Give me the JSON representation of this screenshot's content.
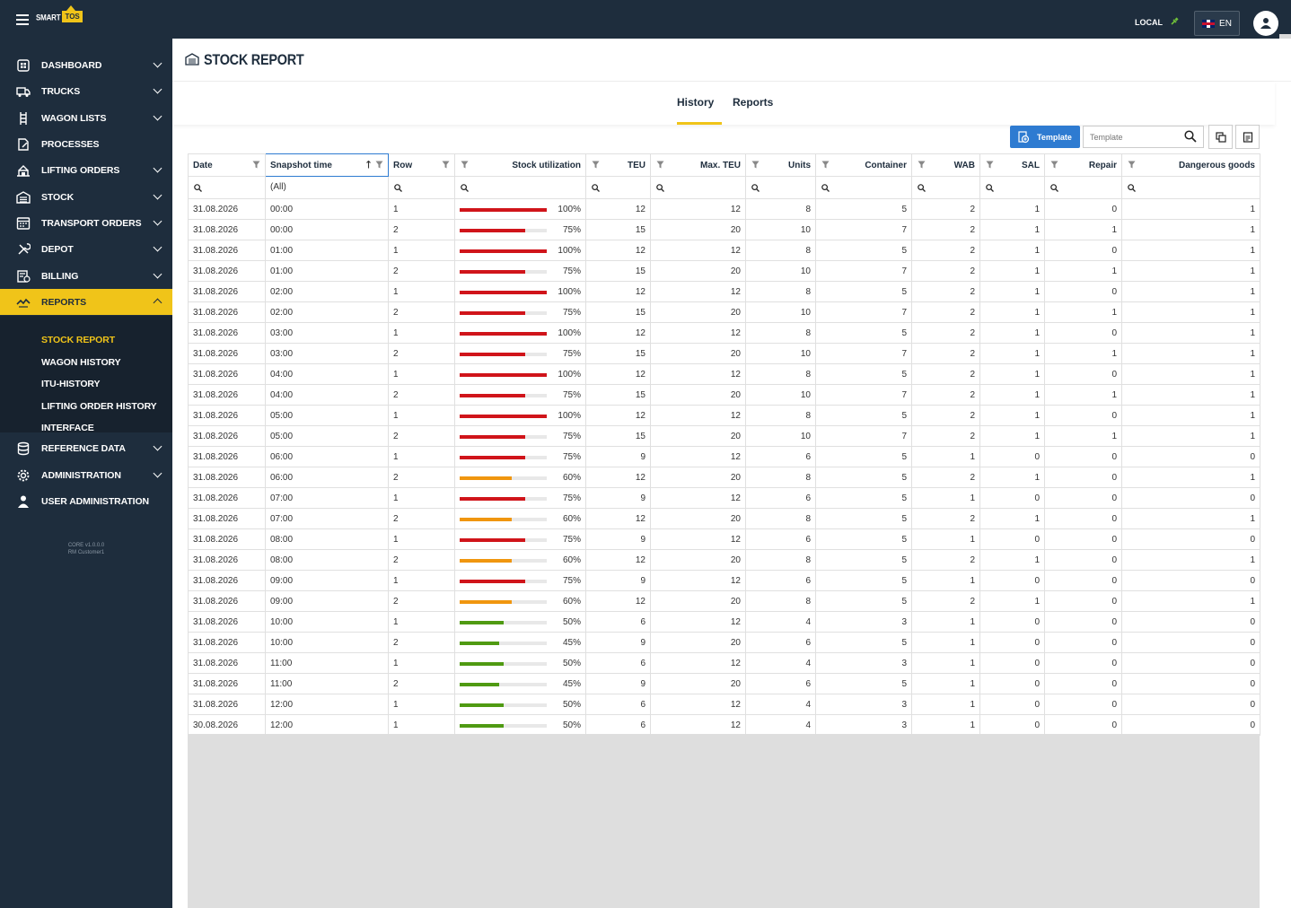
{
  "topbar": {
    "local_label": "LOCAL",
    "lang": "EN",
    "logo_smart": "SMART",
    "logo_tos": "TOS"
  },
  "sidebar": {
    "items": [
      {
        "label": "DASHBOARD",
        "icon": "dashboard-icon"
      },
      {
        "label": "TRUCKS",
        "icon": "truck-icon"
      },
      {
        "label": "WAGON LISTS",
        "icon": "wagon-icon"
      },
      {
        "label": "PROCESSES",
        "icon": "processes-icon"
      },
      {
        "label": "LIFTING ORDERS",
        "icon": "lifting-icon"
      },
      {
        "label": "STOCK",
        "icon": "stock-icon"
      },
      {
        "label": "TRANSPORT ORDERS",
        "icon": "transport-icon"
      },
      {
        "label": "DEPOT",
        "icon": "tools-icon"
      },
      {
        "label": "BILLING",
        "icon": "billing-icon"
      },
      {
        "label": "REPORTS",
        "icon": "reports-icon"
      },
      {
        "label": "REFERENCE DATA",
        "icon": "database-icon"
      },
      {
        "label": "ADMINISTRATION",
        "icon": "gear-icon"
      },
      {
        "label": "USER ADMINISTRATION",
        "icon": "user-icon"
      }
    ],
    "reports_sub": [
      "STOCK REPORT",
      "WAGON HISTORY",
      "ITU-HISTORY",
      "LIFTING ORDER HISTORY",
      "INTERFACE"
    ],
    "version_line1": "CORE v1.0.0.0",
    "version_line2": "RM Customer1"
  },
  "page": {
    "title": "STOCK REPORT"
  },
  "tabs": [
    "History",
    "Reports"
  ],
  "toolbar": {
    "template_button": "Template",
    "template_placeholder": "Template"
  },
  "grid": {
    "columns": [
      "Date",
      "Snapshot time",
      "Row",
      "Stock utilization",
      "TEU",
      "Max. TEU",
      "Units",
      "Container",
      "WAB",
      "SAL",
      "Repair",
      "Dangerous goods"
    ],
    "filter_all": "(All)",
    "rows": [
      [
        "31.08.2026",
        "00:00",
        "1",
        "100%",
        "12",
        "12",
        "8",
        "5",
        "2",
        "1",
        "0",
        "1"
      ],
      [
        "31.08.2026",
        "00:00",
        "2",
        "75%",
        "15",
        "20",
        "10",
        "7",
        "2",
        "1",
        "1",
        "1"
      ],
      [
        "31.08.2026",
        "01:00",
        "1",
        "100%",
        "12",
        "12",
        "8",
        "5",
        "2",
        "1",
        "0",
        "1"
      ],
      [
        "31.08.2026",
        "01:00",
        "2",
        "75%",
        "15",
        "20",
        "10",
        "7",
        "2",
        "1",
        "1",
        "1"
      ],
      [
        "31.08.2026",
        "02:00",
        "1",
        "100%",
        "12",
        "12",
        "8",
        "5",
        "2",
        "1",
        "0",
        "1"
      ],
      [
        "31.08.2026",
        "02:00",
        "2",
        "75%",
        "15",
        "20",
        "10",
        "7",
        "2",
        "1",
        "1",
        "1"
      ],
      [
        "31.08.2026",
        "03:00",
        "1",
        "100%",
        "12",
        "12",
        "8",
        "5",
        "2",
        "1",
        "0",
        "1"
      ],
      [
        "31.08.2026",
        "03:00",
        "2",
        "75%",
        "15",
        "20",
        "10",
        "7",
        "2",
        "1",
        "1",
        "1"
      ],
      [
        "31.08.2026",
        "04:00",
        "1",
        "100%",
        "12",
        "12",
        "8",
        "5",
        "2",
        "1",
        "0",
        "1"
      ],
      [
        "31.08.2026",
        "04:00",
        "2",
        "75%",
        "15",
        "20",
        "10",
        "7",
        "2",
        "1",
        "1",
        "1"
      ],
      [
        "31.08.2026",
        "05:00",
        "1",
        "100%",
        "12",
        "12",
        "8",
        "5",
        "2",
        "1",
        "0",
        "1"
      ],
      [
        "31.08.2026",
        "05:00",
        "2",
        "75%",
        "15",
        "20",
        "10",
        "7",
        "2",
        "1",
        "1",
        "1"
      ],
      [
        "31.08.2026",
        "06:00",
        "1",
        "75%",
        "9",
        "12",
        "6",
        "5",
        "1",
        "0",
        "0",
        "0"
      ],
      [
        "31.08.2026",
        "06:00",
        "2",
        "60%",
        "12",
        "20",
        "8",
        "5",
        "2",
        "1",
        "0",
        "1"
      ],
      [
        "31.08.2026",
        "07:00",
        "1",
        "75%",
        "9",
        "12",
        "6",
        "5",
        "1",
        "0",
        "0",
        "0"
      ],
      [
        "31.08.2026",
        "07:00",
        "2",
        "60%",
        "12",
        "20",
        "8",
        "5",
        "2",
        "1",
        "0",
        "1"
      ],
      [
        "31.08.2026",
        "08:00",
        "1",
        "75%",
        "9",
        "12",
        "6",
        "5",
        "1",
        "0",
        "0",
        "0"
      ],
      [
        "31.08.2026",
        "08:00",
        "2",
        "60%",
        "12",
        "20",
        "8",
        "5",
        "2",
        "1",
        "0",
        "1"
      ],
      [
        "31.08.2026",
        "09:00",
        "1",
        "75%",
        "9",
        "12",
        "6",
        "5",
        "1",
        "0",
        "0",
        "0"
      ],
      [
        "31.08.2026",
        "09:00",
        "2",
        "60%",
        "12",
        "20",
        "8",
        "5",
        "2",
        "1",
        "0",
        "1"
      ],
      [
        "31.08.2026",
        "10:00",
        "1",
        "50%",
        "6",
        "12",
        "4",
        "3",
        "1",
        "0",
        "0",
        "0"
      ],
      [
        "31.08.2026",
        "10:00",
        "2",
        "45%",
        "9",
        "20",
        "6",
        "5",
        "1",
        "0",
        "0",
        "0"
      ],
      [
        "31.08.2026",
        "11:00",
        "1",
        "50%",
        "6",
        "12",
        "4",
        "3",
        "1",
        "0",
        "0",
        "0"
      ],
      [
        "31.08.2026",
        "11:00",
        "2",
        "45%",
        "9",
        "20",
        "6",
        "5",
        "1",
        "0",
        "0",
        "0"
      ],
      [
        "31.08.2026",
        "12:00",
        "1",
        "50%",
        "6",
        "12",
        "4",
        "3",
        "1",
        "0",
        "0",
        "0"
      ],
      [
        "30.08.2026",
        "12:00",
        "1",
        "50%",
        "6",
        "12",
        "4",
        "3",
        "1",
        "0",
        "0",
        "0"
      ]
    ]
  },
  "colors": {
    "navy": "#1e2d3d",
    "accent": "#f0c419",
    "high": "#d0141a",
    "mid": "#f0960f",
    "low": "#4f9a12",
    "button": "#2e7bd1"
  }
}
